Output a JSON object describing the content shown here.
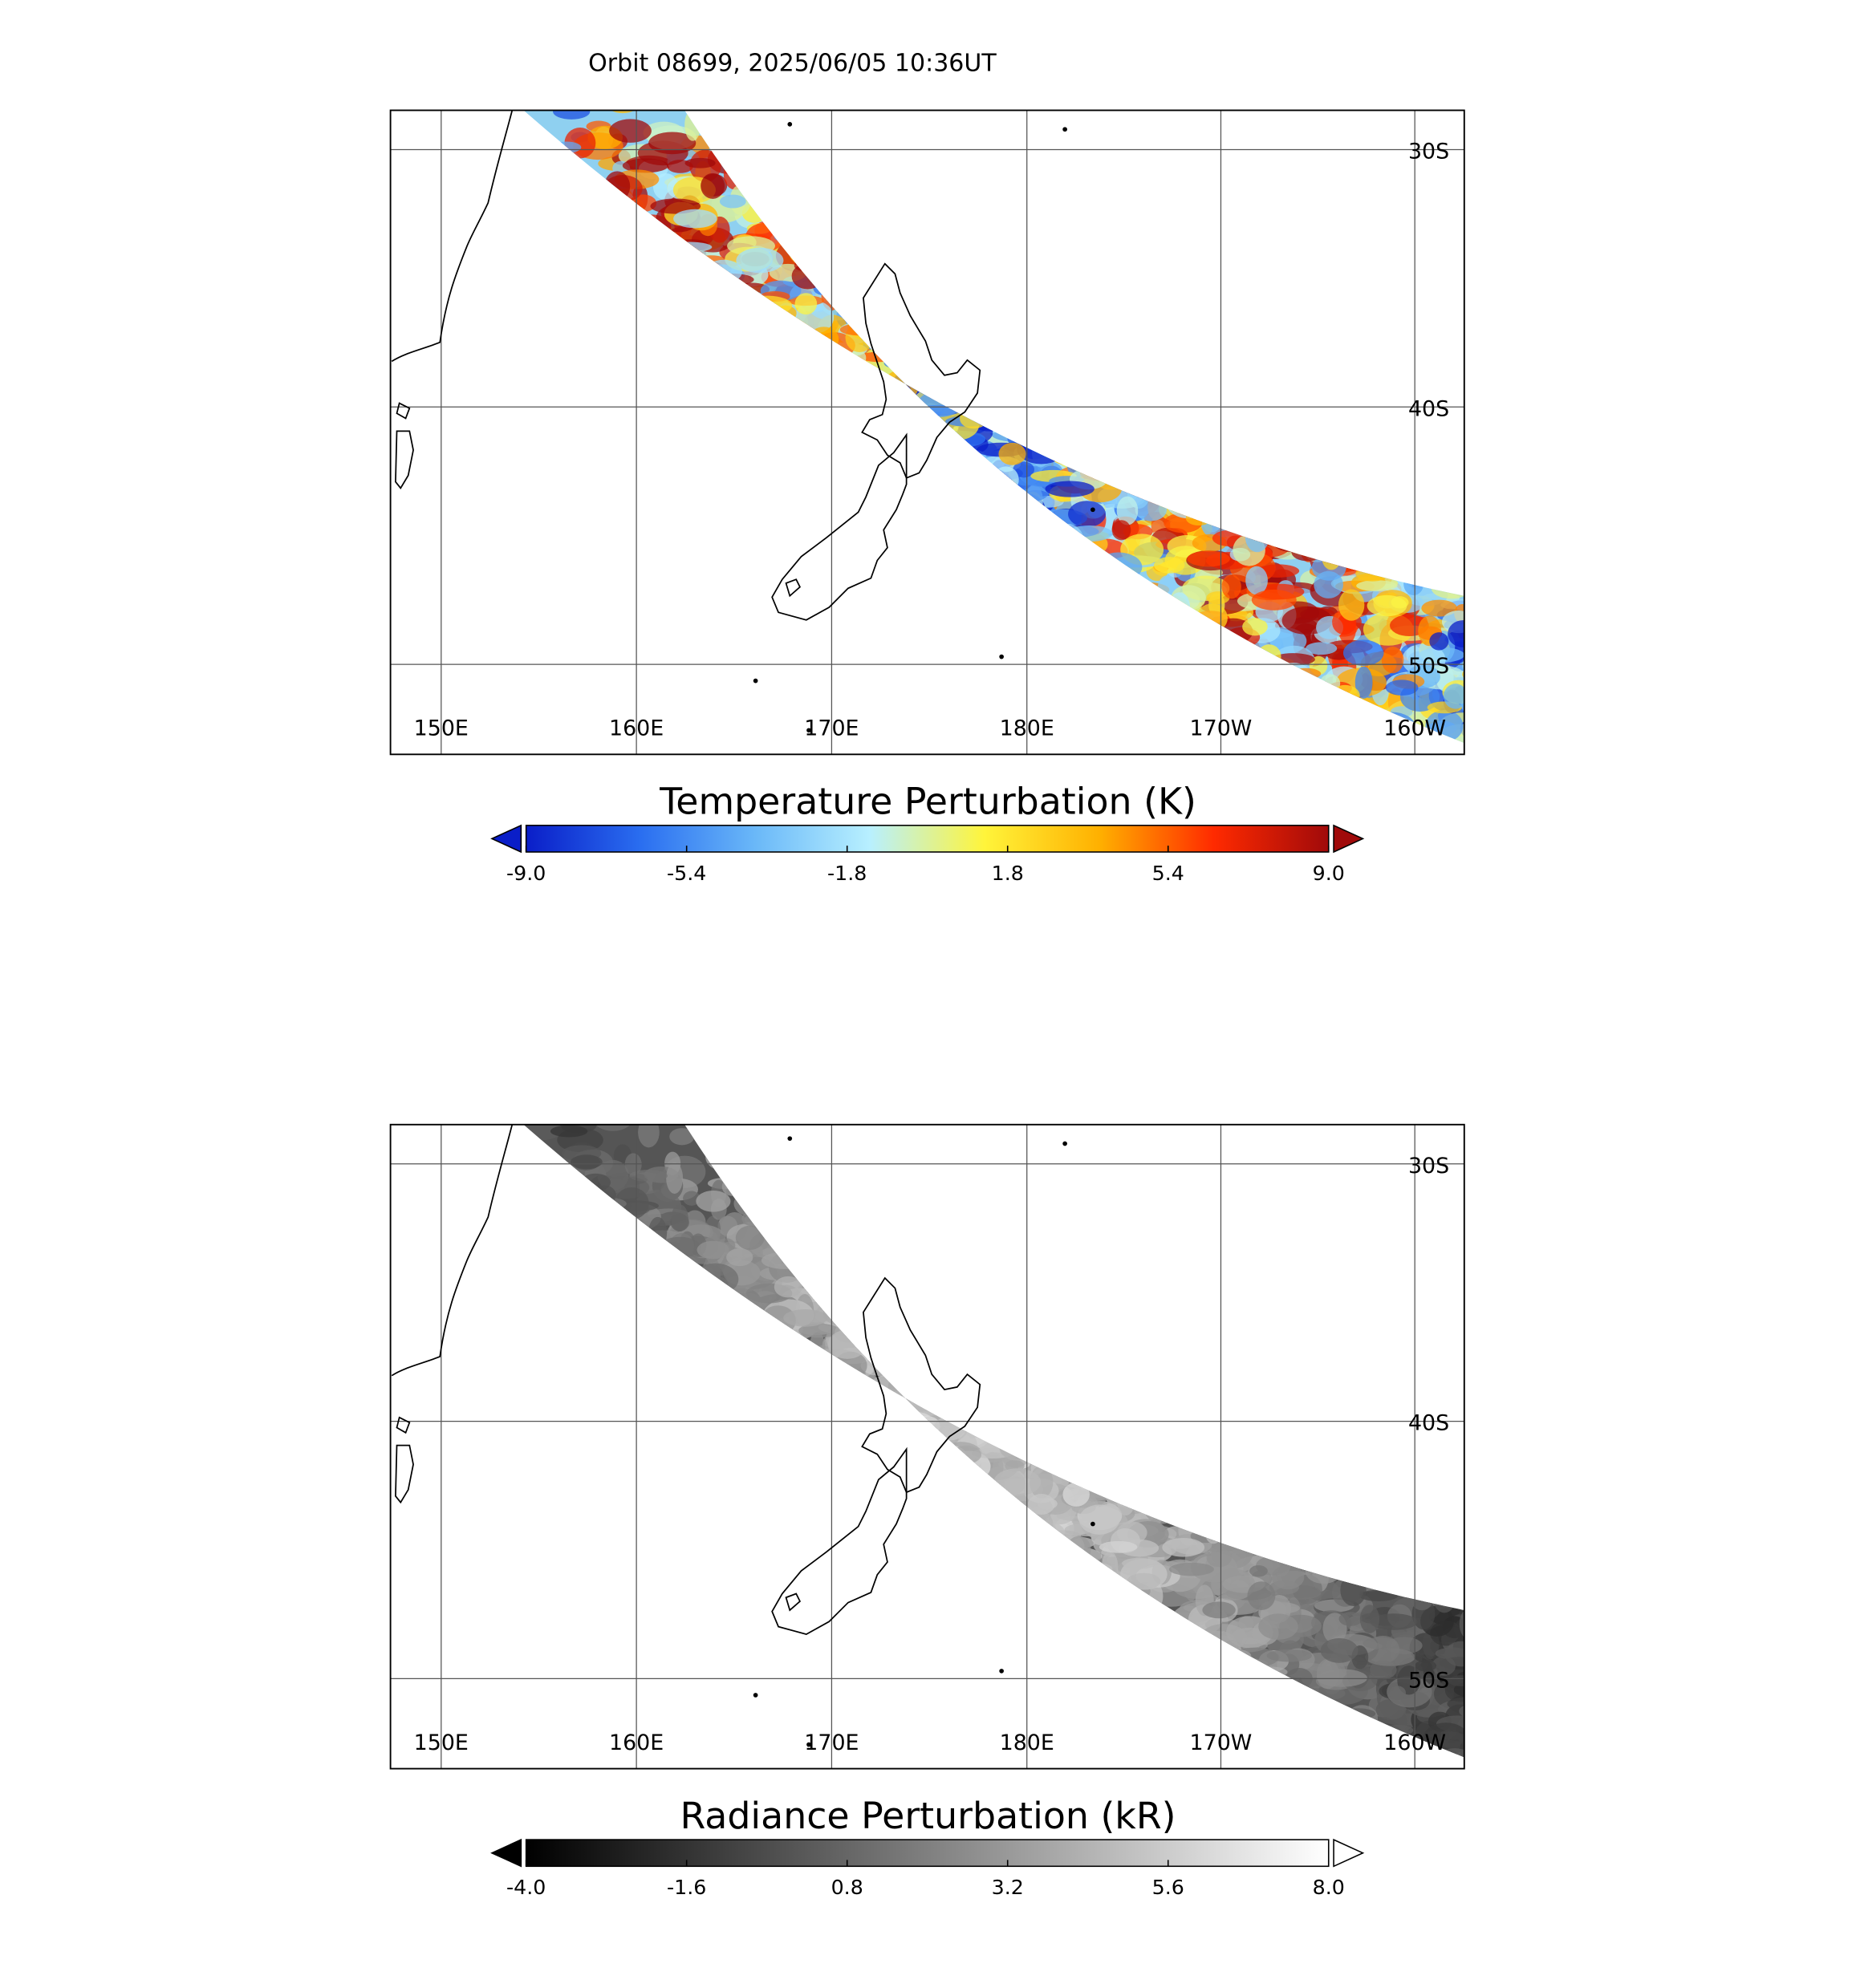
{
  "title": "Orbit 08699, 2025/06/05 10:36UT",
  "maps": [
    {
      "lon_labels": [
        "150E",
        "160E",
        "170E",
        "180E",
        "170W",
        "160W"
      ],
      "lat_labels": [
        "30S",
        "40S",
        "50S"
      ],
      "colorbar": {
        "title": "Temperature Perturbation (K)",
        "range": [
          -9,
          9
        ],
        "ticks": [
          {
            "value": -9,
            "label": "-9.0"
          },
          {
            "value": -5.4,
            "label": "-5.4"
          },
          {
            "value": -1.8,
            "label": "-1.8"
          },
          {
            "value": 1.8,
            "label": "1.8"
          },
          {
            "value": 5.4,
            "label": "5.4"
          },
          {
            "value": 9,
            "label": "9.0"
          }
        ],
        "colors": [
          "#0a1ec8",
          "#2a6ef0",
          "#6ab8f8",
          "#b8f0ff",
          "#fff43a",
          "#ffb000",
          "#ff2a00",
          "#a00a0a"
        ]
      }
    },
    {
      "lon_labels": [
        "150E",
        "160E",
        "170E",
        "180E",
        "170W",
        "160W"
      ],
      "lat_labels": [
        "30S",
        "40S",
        "50S"
      ],
      "colorbar": {
        "title": "Radiance Perturbation (kR)",
        "range": [
          -4,
          8
        ],
        "ticks": [
          {
            "value": -4,
            "label": "-4.0"
          },
          {
            "value": -1.6,
            "label": "-1.6"
          },
          {
            "value": 0.8,
            "label": "0.8"
          },
          {
            "value": 3.2,
            "label": "3.2"
          },
          {
            "value": 5.6,
            "label": "5.6"
          },
          {
            "value": 8,
            "label": "8.0"
          }
        ],
        "colors": [
          "#000000",
          "#ffffff"
        ]
      }
    }
  ]
}
